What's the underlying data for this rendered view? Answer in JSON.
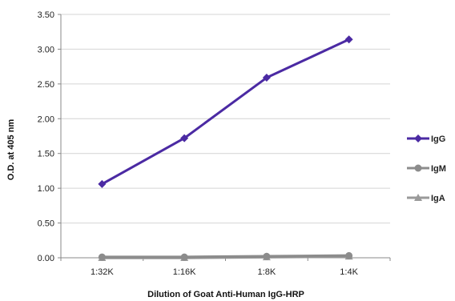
{
  "chart_data": {
    "type": "line",
    "title": "",
    "xlabel": "Dilution of Goat Anti-Human IgG-HRP",
    "ylabel": "O.D. at 405 nm",
    "categories": [
      "1:32K",
      "1:16K",
      "1:8K",
      "1:4K"
    ],
    "ylim": [
      0,
      3.5
    ],
    "yticks": [
      "0.00",
      "0.50",
      "1.00",
      "1.50",
      "2.00",
      "2.50",
      "3.00",
      "3.50"
    ],
    "grid": true,
    "legend_position": "right",
    "series": [
      {
        "name": "IgG",
        "values": [
          1.06,
          1.72,
          2.59,
          3.14
        ],
        "color": "#4b2aa3",
        "marker": "diamond"
      },
      {
        "name": "IgM",
        "values": [
          0.01,
          0.01,
          0.02,
          0.03
        ],
        "color": "#8c8c8c",
        "marker": "circle"
      },
      {
        "name": "IgA",
        "values": [
          0.0,
          0.0,
          0.01,
          0.02
        ],
        "color": "#9a9a9a",
        "marker": "triangle"
      }
    ]
  }
}
